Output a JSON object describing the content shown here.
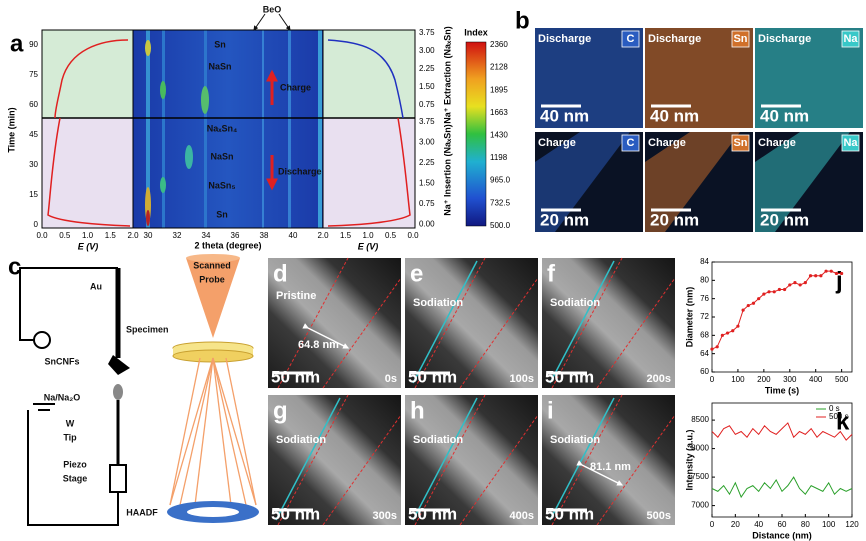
{
  "panel_labels": [
    "a",
    "b",
    "c"
  ],
  "panel_a": {
    "time_label": "Time (min)",
    "time_ticks": [
      "0",
      "15",
      "30",
      "45",
      "60",
      "75",
      "90"
    ],
    "e_ticks": [
      "0.0",
      "0.5",
      "1.0",
      "1.5",
      "2.0"
    ],
    "e_label": "E (V)",
    "theta_ticks": [
      "30",
      "32",
      "34",
      "36",
      "38",
      "40"
    ],
    "theta_label": "2 theta (degree)",
    "extraction_ticks": [
      "3.75",
      "3.00",
      "2.25",
      "1.50",
      "0.75"
    ],
    "insertion_ticks": [
      "3.75",
      "3.00",
      "2.25",
      "1.50",
      "0.75",
      "0.00"
    ],
    "extraction_label": "Na⁺ Extraction (NaₓSn)",
    "insertion_label": "Na⁺ Insertion (NaₓSn)",
    "colorbar_title": "Index",
    "colorbar_ticks": [
      "2360",
      "2128",
      "1895",
      "1663",
      "1430",
      "1198",
      "965.0",
      "732.5",
      "500.0"
    ],
    "beo": "BeO",
    "phases_charge": [
      "Sn",
      "NaSn"
    ],
    "charge": "Charge",
    "phases_discharge": [
      "NaₓSn₄",
      "NaSn",
      "NaSn₅",
      "Sn"
    ],
    "discharge": "Discharge"
  },
  "panel_b": {
    "tiles": [
      {
        "state": "Discharge",
        "element": "C",
        "scale": "40 nm"
      },
      {
        "state": "Discharge",
        "element": "Sn",
        "scale": "40 nm"
      },
      {
        "state": "Discharge",
        "element": "Na",
        "scale": "40 nm"
      },
      {
        "state": "Charge",
        "element": "C",
        "scale": "20 nm"
      },
      {
        "state": "Charge",
        "element": "Sn",
        "scale": "20 nm"
      },
      {
        "state": "Charge",
        "element": "Na",
        "scale": "20 nm"
      }
    ]
  },
  "panel_c": {
    "probe": [
      "Scanned",
      "Probe"
    ],
    "au": "Au",
    "specimen": "Specimen",
    "sample": "SnCNFs",
    "source": "Na/Na₂O",
    "tip": [
      "W",
      "Tip"
    ],
    "stage": [
      "Piezo",
      "Stage"
    ],
    "detector": "HAADF"
  },
  "panels_d_i": [
    {
      "label": "d",
      "caption": "Pristine",
      "scale": "50 nm",
      "time": "0s",
      "measure": "64.8 nm"
    },
    {
      "label": "e",
      "caption": "Sodiation",
      "scale": "50 nm",
      "time": "100s"
    },
    {
      "label": "f",
      "caption": "Sodiation",
      "scale": "50 nm",
      "time": "200s"
    },
    {
      "label": "g",
      "caption": "Sodiation",
      "scale": "50 nm",
      "time": "300s"
    },
    {
      "label": "h",
      "caption": "Sodiation",
      "scale": "50 nm",
      "time": "400s"
    },
    {
      "label": "i",
      "caption": "Sodiation",
      "scale": "50 nm",
      "time": "500s",
      "measure": "81.1 nm"
    }
  ],
  "chart_data": [
    {
      "type": "line",
      "panel": "j",
      "x_label": "Time (s)",
      "y_label": "Diameter (nm)",
      "color": "#e02020",
      "x": [
        0,
        20,
        40,
        60,
        80,
        100,
        120,
        140,
        160,
        180,
        200,
        220,
        240,
        260,
        280,
        300,
        320,
        340,
        360,
        380,
        400,
        420,
        440,
        460,
        480,
        500
      ],
      "values": [
        65,
        65.5,
        68,
        68.5,
        69,
        70,
        73.5,
        74.5,
        75,
        76,
        77,
        77.5,
        77.5,
        78,
        78,
        79,
        79.5,
        79,
        79.5,
        81,
        81,
        81,
        82,
        82,
        81.5,
        81.5
      ],
      "xlim": [
        0,
        540
      ],
      "ylim": [
        60,
        84
      ],
      "xticks": [
        0,
        100,
        200,
        300,
        400,
        500
      ],
      "yticks": [
        60,
        64,
        68,
        72,
        76,
        80,
        84
      ]
    },
    {
      "type": "line",
      "panel": "k",
      "x_label": "Distance (nm)",
      "y_label": "Intensity (a.u.)",
      "x": [
        0,
        5,
        10,
        15,
        20,
        25,
        30,
        35,
        40,
        45,
        50,
        55,
        60,
        65,
        70,
        75,
        80,
        85,
        90,
        95,
        100,
        105,
        110,
        115,
        120
      ],
      "series": [
        {
          "name": "0 s",
          "color": "#2aa02a",
          "values": [
            7300,
            7250,
            7350,
            7200,
            7400,
            7150,
            7300,
            7350,
            7250,
            7400,
            7300,
            7450,
            7250,
            7350,
            7500,
            7300,
            7200,
            7350,
            7300,
            7250,
            7400,
            7200,
            7300,
            7250,
            7300
          ]
        },
        {
          "name": "500 s",
          "color": "#e02020",
          "values": [
            8300,
            8200,
            8350,
            8400,
            8250,
            8300,
            8200,
            8350,
            8250,
            8400,
            8300,
            8250,
            8350,
            8450,
            8200,
            8300,
            8250,
            8350,
            8200,
            8300,
            8250,
            8200,
            8300,
            8150,
            8250
          ]
        }
      ],
      "xlim": [
        0,
        120
      ],
      "ylim": [
        6800,
        8800
      ],
      "xticks": [
        0,
        20,
        40,
        60,
        80,
        100,
        120
      ],
      "yticks": [
        7000,
        7500,
        8000,
        8500
      ]
    }
  ]
}
